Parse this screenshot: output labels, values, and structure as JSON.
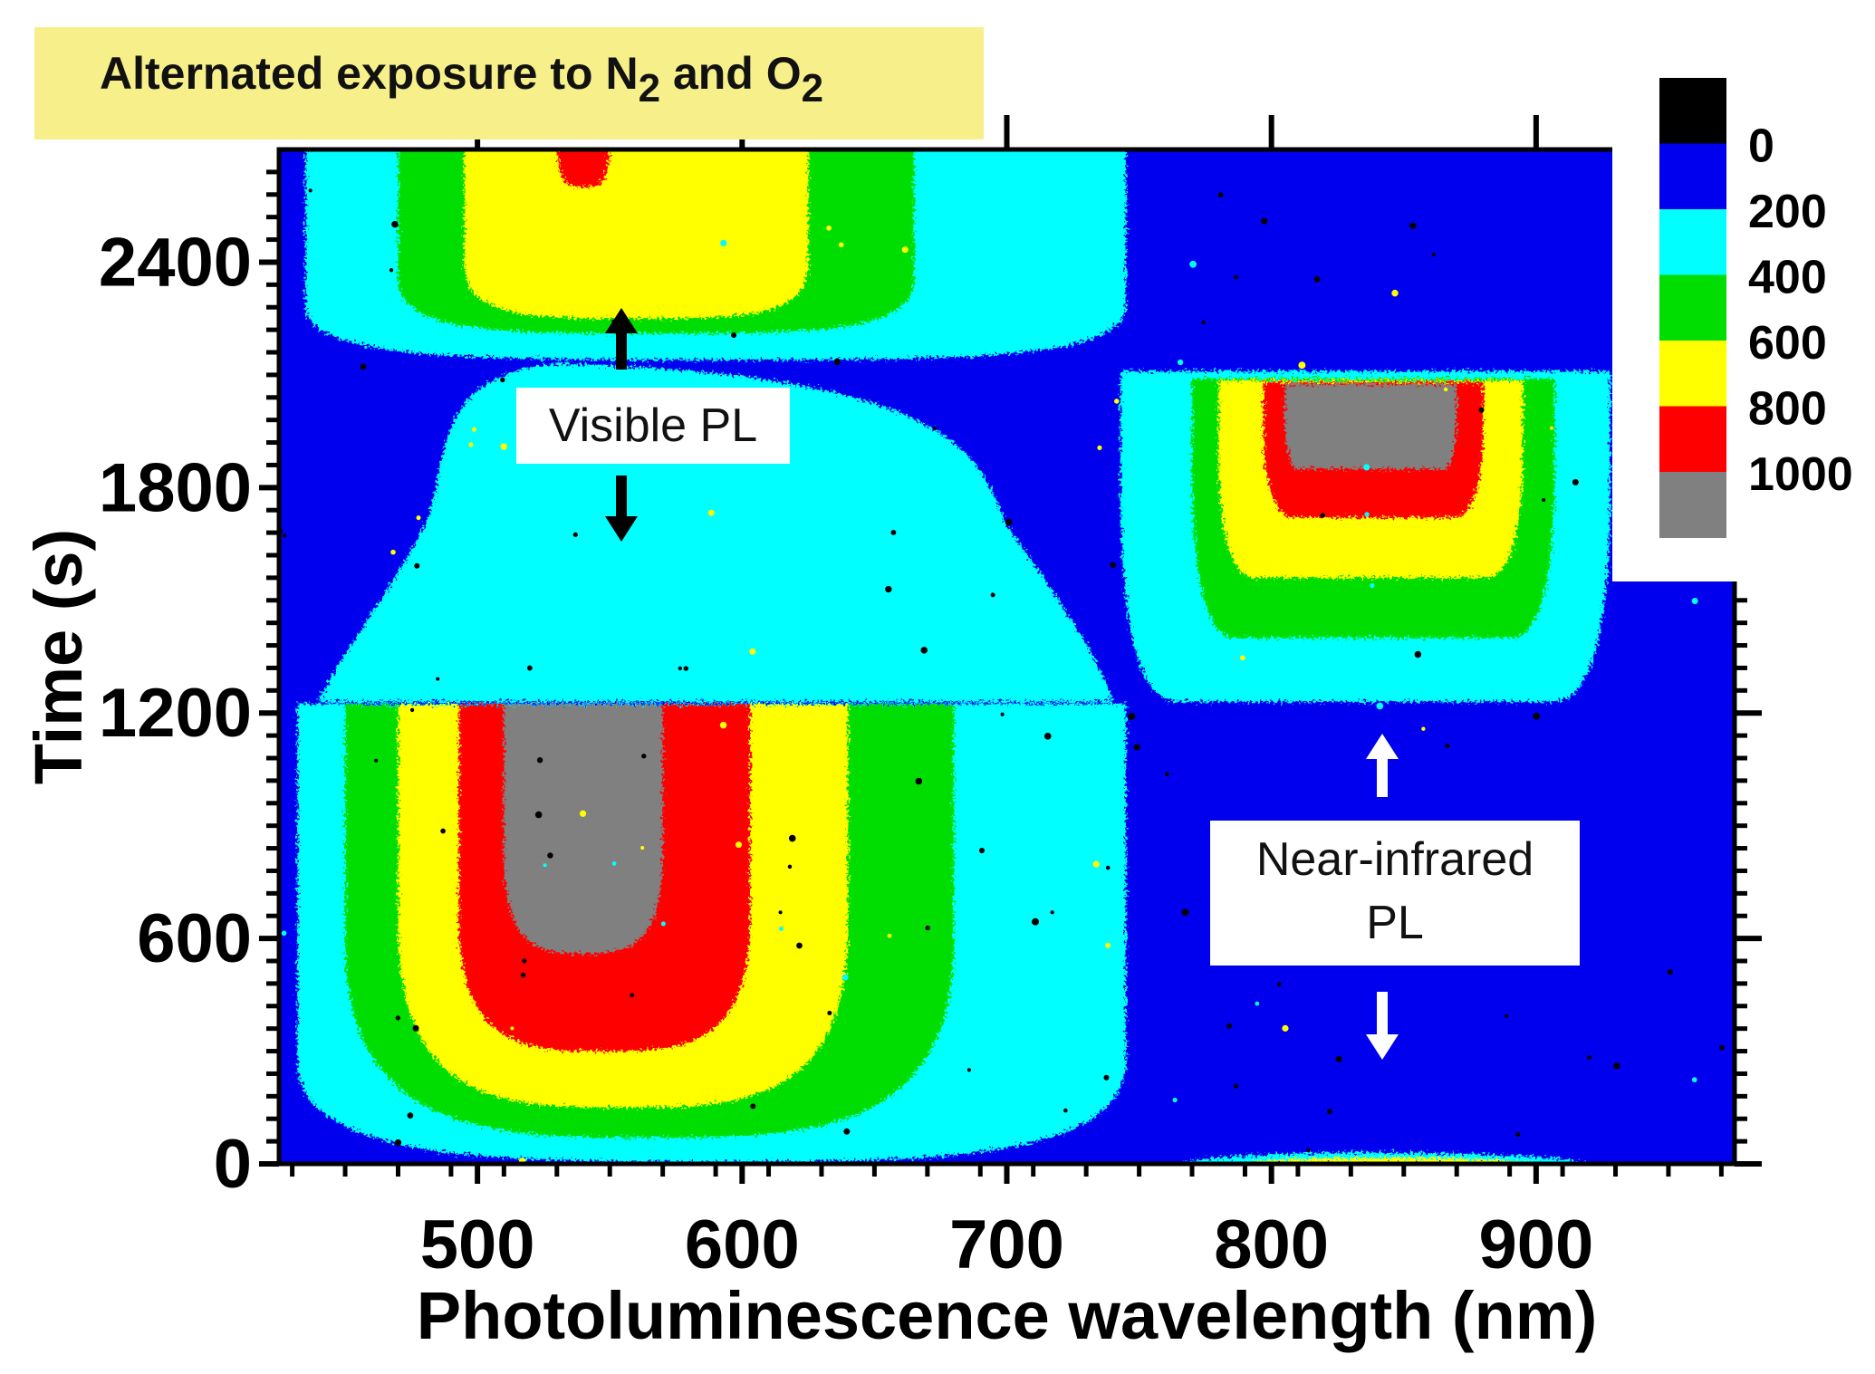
{
  "title": {
    "prefix": "Alternated exposure to N",
    "sub1": "2",
    "mid": " and O",
    "sub2": "2"
  },
  "annotations": {
    "visible": "Visible PL",
    "nir_line1": "Near-infrared",
    "nir_line2": "PL"
  },
  "colors": {
    "background_blue": "#0000ee",
    "cyan": "#00ffff",
    "green": "#00dd00",
    "yellow": "#ffff00",
    "red": "#ff0000",
    "gray": "#808080",
    "black": "#000000",
    "title_bg": "#f7f08a"
  },
  "chart_data": {
    "type": "heatmap",
    "title": "Alternated exposure to N2 and O2",
    "xlabel": "Photoluminescence wavelength (nm)",
    "ylabel": "Time (s)",
    "xlim": [
      425,
      975
    ],
    "ylim": [
      0,
      2700
    ],
    "xticks": [
      500,
      600,
      700,
      800,
      900
    ],
    "yticks": [
      0,
      600,
      1200,
      1800,
      2400
    ],
    "colorbar": {
      "levels": [
        0,
        200,
        400,
        600,
        800,
        1000
      ],
      "labels": [
        "0",
        "200",
        "400",
        "600",
        "800",
        "1000"
      ],
      "colors": [
        "#000000",
        "#0000ee",
        "#00ffff",
        "#00dd00",
        "#ffff00",
        "#ff0000",
        "#808080"
      ]
    },
    "regions": [
      {
        "name": "visible-PL-period-1",
        "center_nm": 540,
        "t_start": 0,
        "t_end": 1220,
        "peak": ">1000"
      },
      {
        "name": "visible-PL-period-2",
        "center_nm": 540,
        "t_start": 1220,
        "t_end": 2150,
        "peak": "200-400"
      },
      {
        "name": "visible-PL-period-3",
        "center_nm": 540,
        "t_start": 2150,
        "t_end": 2700,
        "peak": "800-1000"
      },
      {
        "name": "NIR-PL-period-2",
        "center_nm": 835,
        "t_start": 1220,
        "t_end": 2130,
        "peak": ">1000"
      },
      {
        "name": "NIR-PL-period-1-edge",
        "center_nm": 830,
        "t_start": 0,
        "t_end": 30,
        "peak": "600-800"
      }
    ],
    "annotations": [
      {
        "text": "Visible PL",
        "x_nm": 550,
        "t": 1850
      },
      {
        "text": "Near-infrared PL",
        "x_nm": 842,
        "t": 900
      }
    ]
  }
}
